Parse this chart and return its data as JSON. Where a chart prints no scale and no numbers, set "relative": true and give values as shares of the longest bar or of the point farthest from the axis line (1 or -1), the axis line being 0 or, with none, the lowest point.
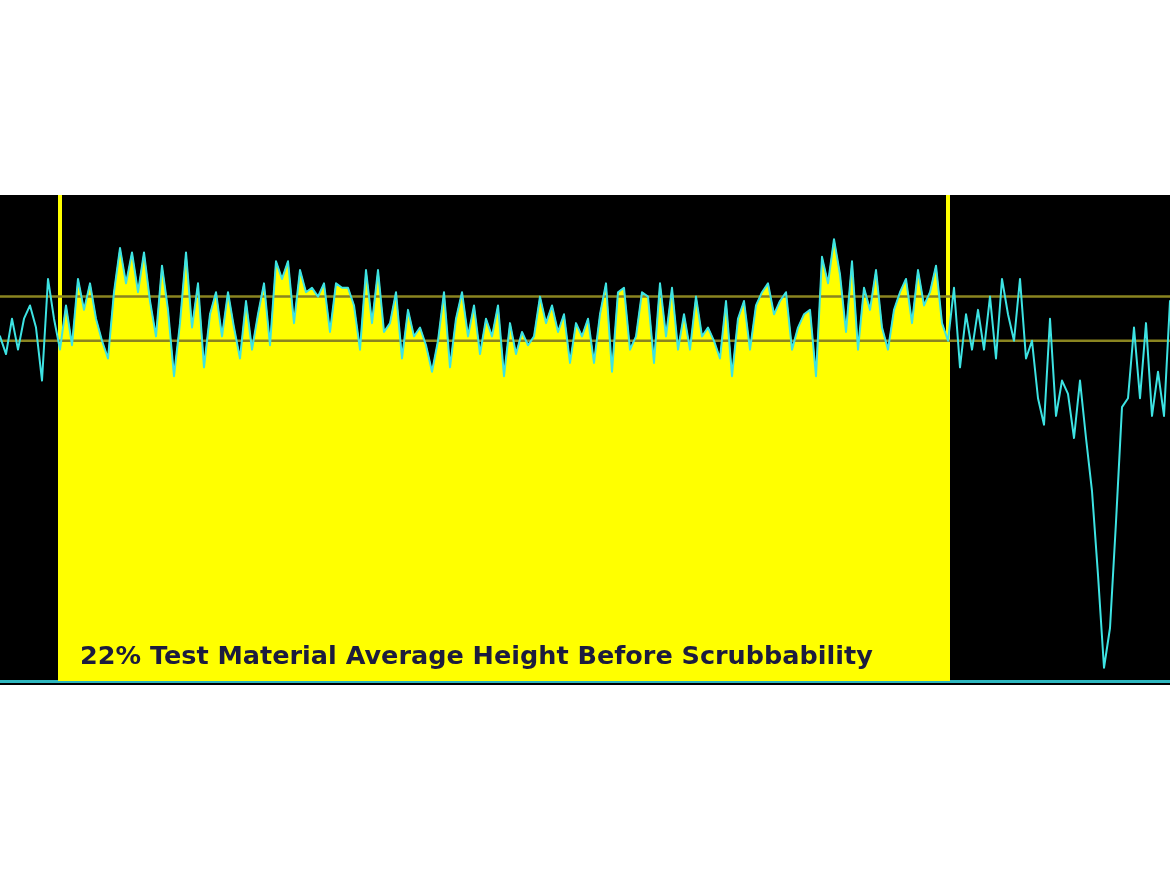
{
  "chart_data": {
    "type": "line",
    "title": "22% Test Material Average Height Before Scrubbability",
    "relative": true,
    "categories": [
      null,
      null,
      null,
      null,
      null,
      null,
      null,
      null,
      null,
      null,
      null,
      null,
      null,
      null,
      null,
      null,
      null,
      null,
      null,
      null,
      null,
      null,
      null,
      null,
      null,
      null,
      null,
      null,
      null,
      null,
      null,
      null,
      null,
      null,
      null,
      null,
      null,
      null,
      null,
      null,
      null,
      null,
      null,
      null,
      null,
      null,
      null,
      null,
      null,
      null,
      null,
      null,
      null,
      null,
      null,
      null,
      null,
      null,
      null,
      null,
      null,
      null,
      null,
      null,
      null,
      null,
      null,
      null,
      null,
      null,
      null,
      null,
      null,
      null,
      null,
      null,
      null,
      null,
      null,
      null,
      null,
      null,
      null,
      null,
      null,
      null,
      null,
      null,
      null,
      null,
      null,
      null,
      null,
      null,
      null,
      null,
      null,
      null,
      null,
      null,
      null,
      null,
      null,
      null,
      null,
      null,
      null,
      null,
      null,
      null,
      null,
      null,
      null,
      null,
      null,
      null,
      null,
      null,
      null,
      null,
      null,
      null,
      null,
      null,
      null,
      null,
      null,
      null,
      null,
      null,
      null,
      null,
      null,
      null,
      null,
      null,
      null,
      null,
      null,
      null,
      null,
      null,
      null,
      null,
      null,
      null,
      null,
      null,
      null,
      null,
      null,
      null,
      null,
      null,
      null,
      null,
      null,
      null,
      null,
      null,
      null,
      null,
      null,
      null,
      null,
      null,
      null,
      null,
      null,
      null,
      null,
      null,
      null,
      null,
      null,
      null,
      null,
      null,
      null,
      null,
      null,
      null,
      null,
      null,
      null,
      null,
      null,
      null,
      null,
      null,
      null,
      null,
      null,
      null,
      null,
      null
    ],
    "series": [
      {
        "type": "area",
        "color": "#ffff00",
        "values": [
          null,
          null,
          null,
          null,
          null,
          null,
          null,
          null,
          null,
          null,
          0.75,
          0.85,
          0.76,
          0.91,
          0.84,
          0.9,
          0.82,
          0.77,
          0.73,
          0.88,
          0.98,
          0.9,
          0.97,
          0.88,
          0.97,
          0.86,
          0.78,
          0.94,
          0.84,
          0.69,
          0.81,
          0.97,
          0.8,
          0.9,
          0.71,
          0.83,
          0.88,
          0.78,
          0.88,
          0.8,
          0.73,
          0.86,
          0.75,
          0.83,
          0.9,
          0.76,
          0.95,
          0.91,
          0.95,
          0.81,
          0.93,
          0.88,
          0.89,
          0.87,
          0.9,
          0.79,
          0.9,
          0.89,
          0.89,
          0.85,
          0.75,
          0.93,
          0.81,
          0.93,
          0.79,
          0.81,
          0.88,
          0.73,
          0.84,
          0.78,
          0.8,
          0.76,
          0.7,
          0.77,
          0.88,
          0.71,
          0.82,
          0.88,
          0.78,
          0.85,
          0.74,
          0.82,
          0.78,
          0.85,
          0.69,
          0.81,
          0.74,
          0.79,
          0.76,
          0.78,
          0.87,
          0.81,
          0.85,
          0.79,
          0.83,
          0.72,
          0.81,
          0.78,
          0.82,
          0.72,
          0.83,
          0.9,
          0.7,
          0.88,
          0.89,
          0.75,
          0.78,
          0.88,
          0.87,
          0.72,
          0.9,
          0.78,
          0.89,
          0.75,
          0.83,
          0.75,
          0.87,
          0.78,
          0.8,
          0.77,
          0.73,
          0.86,
          0.69,
          0.82,
          0.86,
          0.75,
          0.85,
          0.88,
          0.9,
          0.83,
          0.86,
          0.88,
          0.75,
          0.8,
          0.83,
          0.84,
          0.69,
          0.96,
          0.9,
          1.0,
          0.92,
          0.79,
          0.95,
          0.75,
          0.89,
          0.84,
          0.93,
          0.8,
          0.75,
          0.84,
          0.88,
          0.91,
          0.81,
          0.93,
          0.85,
          0.88,
          0.94,
          0.81,
          0.77,
          null,
          null,
          null,
          null,
          null,
          null,
          null,
          null,
          null,
          null,
          null,
          null,
          null,
          null,
          null,
          null,
          null,
          null,
          null,
          null,
          null,
          null,
          null,
          null,
          null,
          null,
          null,
          null,
          null,
          null,
          null,
          null,
          null,
          null,
          null,
          null,
          null
        ]
      },
      {
        "color": "#3de3e3",
        "values": [
          0.78,
          0.74,
          0.82,
          0.75,
          0.82,
          0.85,
          0.8,
          0.68,
          0.91,
          0.82,
          0.75,
          0.85,
          0.76,
          0.91,
          0.84,
          0.9,
          0.82,
          0.77,
          0.73,
          0.88,
          0.98,
          0.9,
          0.97,
          0.88,
          0.97,
          0.86,
          0.78,
          0.94,
          0.84,
          0.69,
          0.81,
          0.97,
          0.8,
          0.9,
          0.71,
          0.83,
          0.88,
          0.78,
          0.88,
          0.8,
          0.73,
          0.86,
          0.75,
          0.83,
          0.9,
          0.76,
          0.95,
          0.91,
          0.95,
          0.81,
          0.93,
          0.88,
          0.89,
          0.87,
          0.9,
          0.79,
          0.9,
          0.89,
          0.89,
          0.85,
          0.75,
          0.93,
          0.81,
          0.93,
          0.79,
          0.81,
          0.88,
          0.73,
          0.84,
          0.78,
          0.8,
          0.76,
          0.7,
          0.77,
          0.88,
          0.71,
          0.82,
          0.88,
          0.78,
          0.85,
          0.74,
          0.82,
          0.78,
          0.85,
          0.69,
          0.81,
          0.74,
          0.79,
          0.76,
          0.78,
          0.87,
          0.81,
          0.85,
          0.79,
          0.83,
          0.72,
          0.81,
          0.78,
          0.82,
          0.72,
          0.83,
          0.9,
          0.7,
          0.88,
          0.89,
          0.75,
          0.78,
          0.88,
          0.87,
          0.72,
          0.9,
          0.78,
          0.89,
          0.75,
          0.83,
          0.75,
          0.87,
          0.78,
          0.8,
          0.77,
          0.73,
          0.86,
          0.69,
          0.82,
          0.86,
          0.75,
          0.85,
          0.88,
          0.9,
          0.83,
          0.86,
          0.88,
          0.75,
          0.8,
          0.83,
          0.84,
          0.69,
          0.96,
          0.9,
          1.0,
          0.92,
          0.79,
          0.95,
          0.75,
          0.89,
          0.84,
          0.93,
          0.8,
          0.75,
          0.84,
          0.88,
          0.91,
          0.81,
          0.93,
          0.85,
          0.88,
          0.94,
          0.81,
          0.77,
          0.89,
          0.71,
          0.83,
          0.75,
          0.84,
          0.75,
          0.87,
          0.73,
          0.91,
          0.83,
          0.77,
          0.91,
          0.73,
          0.77,
          0.64,
          0.58,
          0.82,
          0.6,
          0.68,
          0.65,
          0.55,
          0.68,
          0.55,
          0.43,
          0.24,
          0.03,
          0.12,
          0.36,
          0.62,
          0.64,
          0.8,
          0.64,
          0.81,
          0.6,
          0.7,
          0.6,
          0.86
        ]
      }
    ],
    "ref_lines": [
      {
        "axis": "y",
        "value": 0.87,
        "color": "#8a8420"
      },
      {
        "axis": "y",
        "value": 0.77,
        "color": "#8a8420"
      }
    ]
  }
}
